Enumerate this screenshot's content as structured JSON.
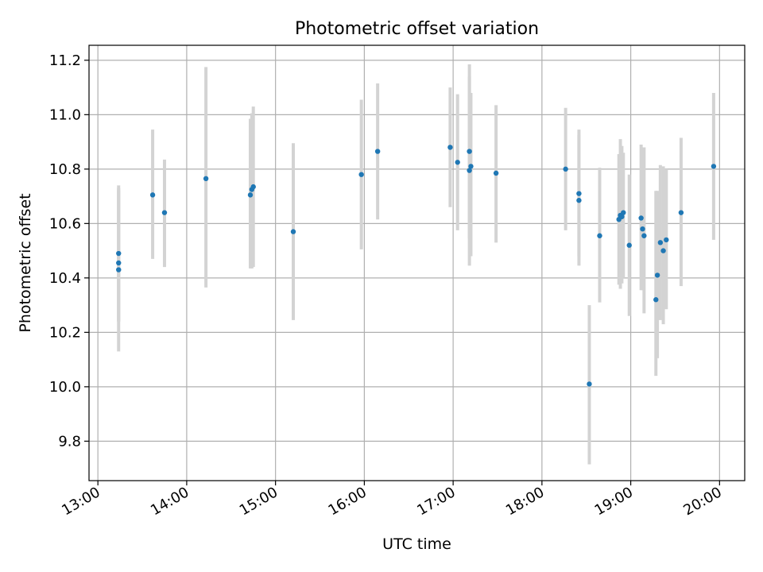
{
  "chart_data": {
    "type": "scatter",
    "title": "Photometric offset variation",
    "xlabel": "UTC time",
    "ylabel": "Photometric offset",
    "x_ticks": [
      "13:00",
      "14:00",
      "15:00",
      "16:00",
      "17:00",
      "18:00",
      "19:00",
      "20:00"
    ],
    "y_ticks": [
      "9.8",
      "10.0",
      "10.2",
      "10.4",
      "10.6",
      "10.8",
      "11.0",
      "11.2"
    ],
    "xlim": [
      "12:54",
      "20:17"
    ],
    "ylim": [
      9.655,
      11.255
    ],
    "grid": true,
    "legend": "none",
    "colors": {
      "points": "#1f77b4",
      "errorbars": "#d3d3d3",
      "grid": "#b0b0b0"
    },
    "series": [
      {
        "x": [
          "13:14",
          "13:14",
          "13:14",
          "13:37",
          "13:45",
          "14:13",
          "14:43",
          "14:44",
          "14:45",
          "15:12",
          "15:58",
          "16:09",
          "16:58",
          "17:03",
          "17:11",
          "17:11",
          "17:12",
          "17:29",
          "18:16",
          "18:25",
          "18:25",
          "18:32",
          "18:39",
          "18:52",
          "18:53",
          "18:54",
          "18:55",
          "18:59",
          "19:07",
          "19:08",
          "19:09",
          "19:17",
          "19:18",
          "19:20",
          "19:22",
          "19:24",
          "19:34",
          "19:56"
        ],
        "y": [
          10.49,
          10.455,
          10.43,
          10.705,
          10.64,
          10.765,
          10.705,
          10.725,
          10.735,
          10.57,
          10.78,
          10.865,
          10.88,
          10.825,
          10.865,
          10.795,
          10.81,
          10.785,
          10.8,
          10.71,
          10.685,
          10.01,
          10.555,
          10.615,
          10.63,
          10.625,
          10.64,
          10.52,
          10.62,
          10.58,
          10.555,
          10.32,
          10.41,
          10.53,
          10.5,
          10.54,
          10.64,
          10.81
        ],
        "yerr_low": [
          10.24,
          10.24,
          10.13,
          10.47,
          10.44,
          10.365,
          10.435,
          10.435,
          10.44,
          10.245,
          10.505,
          10.615,
          10.66,
          10.575,
          10.545,
          10.445,
          10.48,
          10.53,
          10.575,
          10.48,
          10.445,
          9.715,
          10.31,
          10.375,
          10.36,
          10.38,
          10.4,
          10.26,
          10.355,
          10.355,
          10.27,
          10.04,
          10.105,
          10.245,
          10.23,
          10.285,
          10.37,
          10.54
        ],
        "yerr_high": [
          10.74,
          10.73,
          10.72,
          10.945,
          10.835,
          11.175,
          10.985,
          11.005,
          11.03,
          10.895,
          11.055,
          11.115,
          11.1,
          11.075,
          11.185,
          11.14,
          11.08,
          11.035,
          11.025,
          10.945,
          10.925,
          10.3,
          10.805,
          10.855,
          10.91,
          10.885,
          10.86,
          10.78,
          10.89,
          10.875,
          10.88,
          10.72,
          10.72,
          10.815,
          10.81,
          10.8,
          10.915,
          11.08
        ]
      }
    ]
  }
}
